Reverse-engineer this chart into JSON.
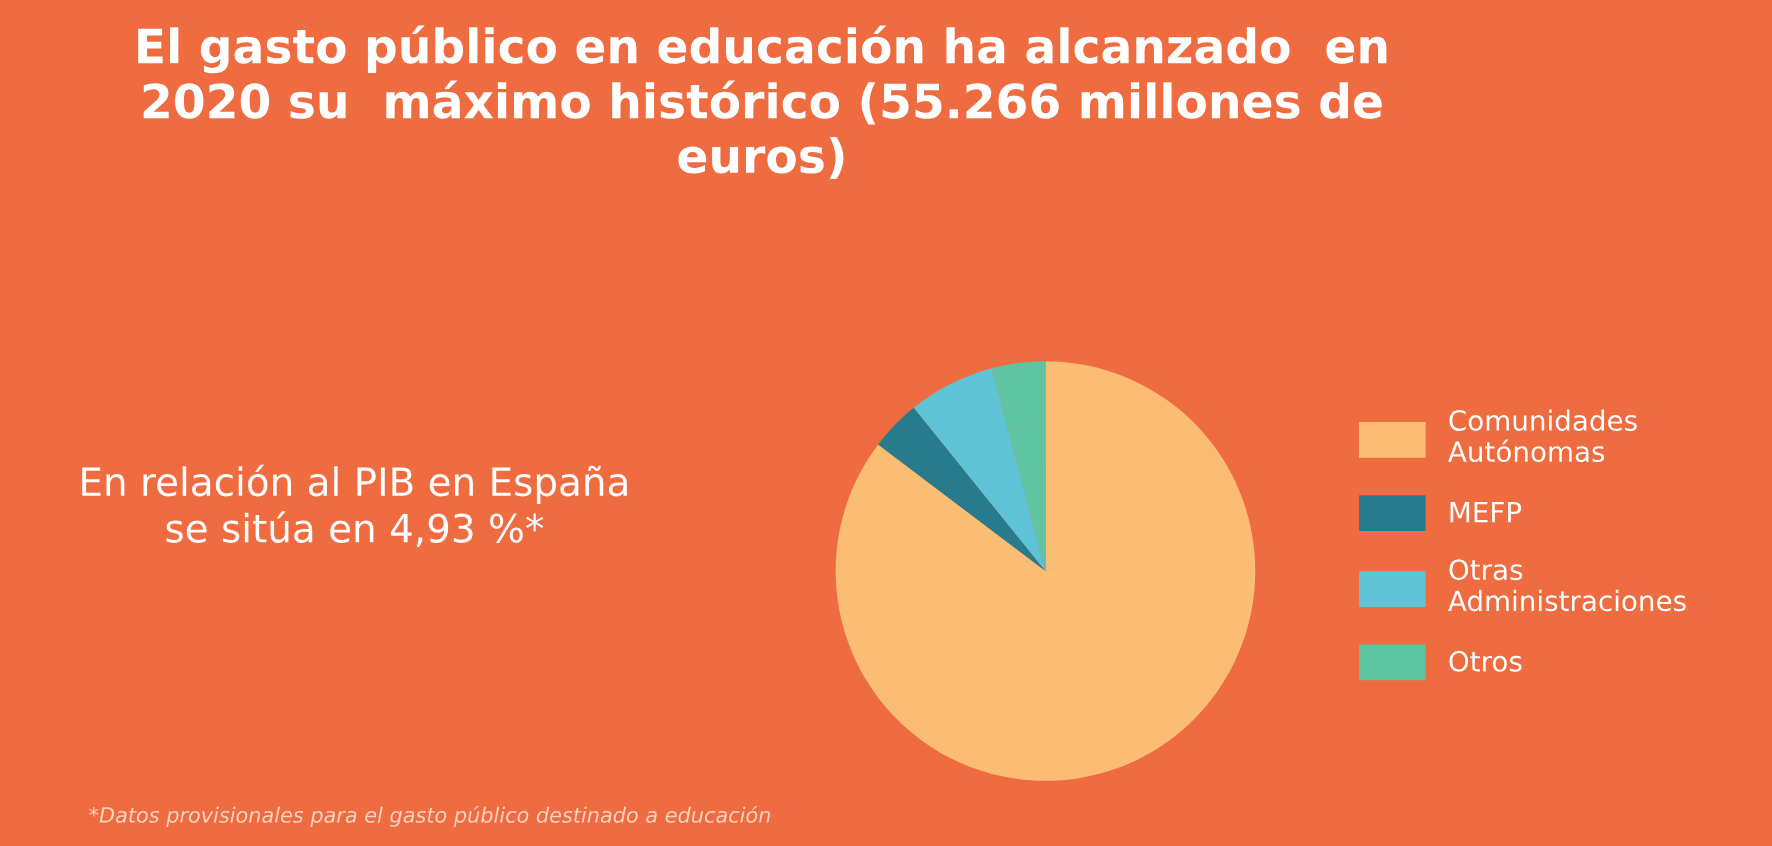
{
  "chart_data": {
    "type": "pie",
    "title": "El gasto público en educación ha alcanzado  en\n2020 su  máximo histórico (55.266 millones de\neuros)",
    "categories": [
      "Comunidades\nAutónomas",
      "MEFP",
      "Otras\nAdministraciones",
      "Otros"
    ],
    "values": [
      85.3,
      3.9,
      6.7,
      4.1
    ],
    "colors": [
      "#fbbd74",
      "#267b8c",
      "#5fc3d6",
      "#5ec4a2"
    ],
    "legend": "right",
    "annotations": [
      "En relación al PIB en España\nse sitúa en 4,93 %*",
      "*Datos provisionales para el gasto público destinado a educación"
    ]
  }
}
